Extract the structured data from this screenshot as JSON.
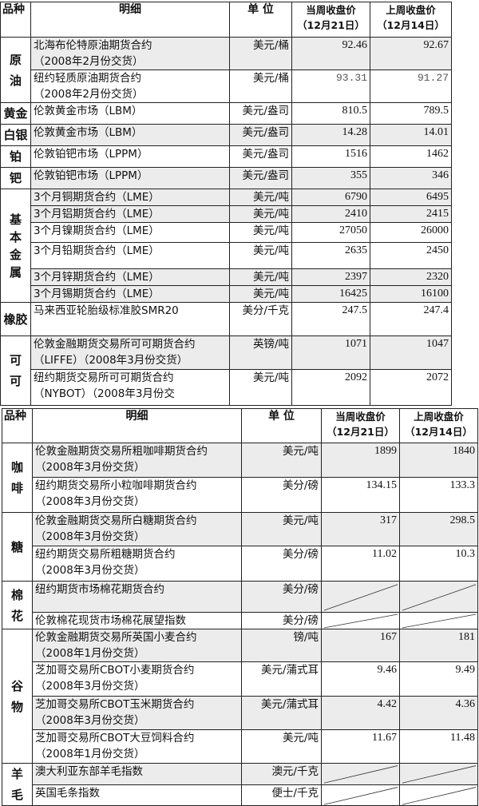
{
  "tables": [
    {
      "header": {
        "category": "品种",
        "detail": "明细",
        "unit": "单 位",
        "current": "当周收盘价",
        "current_date": "（12月21日）",
        "previous": "上周收盘价",
        "previous_date": "（12月14日）"
      },
      "groups": [
        {
          "category": "原油",
          "rows": [
            {
              "detail": [
                "北海布伦特原油期货合约",
                "（2008年2月份交货）"
              ],
              "unit": "美元/桶",
              "current": "92.46",
              "previous": "92.67",
              "shaded": true
            },
            {
              "detail": [
                "纽约轻质原油期货合约",
                "（2008年2月份交货）"
              ],
              "unit": "美元/桶",
              "current": "93.31",
              "previous": "91.27",
              "shaded": false,
              "mono": true
            }
          ]
        },
        {
          "category": "黄金",
          "rows": [
            {
              "detail": [
                "伦敦黄金市场（LBM）"
              ],
              "unit": "美元/盎司",
              "current": "810.5",
              "previous": "789.5",
              "shaded": false
            }
          ]
        },
        {
          "category": "白银",
          "rows": [
            {
              "detail": [
                "伦敦黄金市场（LBM）"
              ],
              "unit": "美元/盎司",
              "current": "14.28",
              "previous": "14.01",
              "shaded": true
            }
          ]
        },
        {
          "category": "铂",
          "rows": [
            {
              "detail": [
                "伦敦铂钯市场（LPPM）"
              ],
              "unit": "美元/盎司",
              "current": "1516",
              "previous": "1462",
              "shaded": false
            }
          ]
        },
        {
          "category": "钯",
          "rows": [
            {
              "detail": [
                "伦敦铂钯市场（LPPM）"
              ],
              "unit": "美元/盎司",
              "current": "355",
              "previous": "346",
              "shaded": true
            }
          ]
        },
        {
          "category": "基本金属",
          "rows": [
            {
              "detail": [
                "3个月铜期货合约（LME）"
              ],
              "unit": "美元/吨",
              "current": "6790",
              "previous": "6495",
              "shaded": true
            },
            {
              "detail": [
                "3个月铝期货合约（LME）"
              ],
              "unit": "美元/吨",
              "current": "2410",
              "previous": "2415",
              "shaded": true
            },
            {
              "detail": [
                "3个月镍期货合约（LME）"
              ],
              "unit": "美元/吨",
              "current": "27050",
              "previous": "26000",
              "shaded": false
            },
            {
              "detail": [
                "3个月铅期货合约（LME）"
              ],
              "unit": "美元/吨",
              "current": "2635",
              "previous": "2450",
              "shaded": false
            },
            {
              "detail": [
                "3个月锌期货合约（LME）"
              ],
              "unit": "美元/吨",
              "current": "2397",
              "previous": "2320",
              "shaded": true
            },
            {
              "detail": [
                "3个月锡期货合约（LME）"
              ],
              "unit": "美元/吨",
              "current": "16425",
              "previous": "16100",
              "shaded": true
            }
          ]
        },
        {
          "category": "橡胶",
          "rows": [
            {
              "detail": [
                "马来西亚轮胎级标准胶SMR20"
              ],
              "unit": "美分/千克",
              "current": "247.5",
              "previous": "247.4",
              "shaded": false
            }
          ]
        },
        {
          "category": "可可",
          "rows": [
            {
              "detail": [
                "伦敦金融期货交易所可可期货合约",
                "（LIFFE）（2008年3月份交货）"
              ],
              "unit": "英镑/吨",
              "current": "1071",
              "previous": "1047",
              "shaded": true
            },
            {
              "detail": [
                "纽约期货交易所可可期货合约",
                "（NYBOT）（2008年3月份交"
              ],
              "unit": "美元/吨",
              "current": "2092",
              "previous": "2072",
              "shaded": false
            }
          ]
        }
      ]
    },
    {
      "header": {
        "category": "品种",
        "detail": "明细",
        "unit": "单 位",
        "current": "当周收盘价",
        "current_date": "（12月21日）",
        "previous": "上周收盘价",
        "previous_date": "（12月14日）"
      },
      "groups": [
        {
          "category": "咖啡",
          "rows": [
            {
              "detail": [
                "伦敦金融期货交易所粗咖啡期货合约",
                "（2008年3月份交货）"
              ],
              "unit": "美元/吨",
              "current": "1899",
              "previous": "1840",
              "shaded": true
            },
            {
              "detail": [
                "纽约期货交易所小粒咖啡期货合约",
                "（2008年3月份交货）"
              ],
              "unit": "美分/磅",
              "current": "134.15",
              "previous": "133.3",
              "shaded": false
            }
          ]
        },
        {
          "category": "糖",
          "rows": [
            {
              "detail": [
                "伦敦金融期货交易所白糖期货合约",
                "（2008年3月份交货）"
              ],
              "unit": "美元/吨",
              "current": "317",
              "previous": "298.5",
              "shaded": true
            },
            {
              "detail": [
                "纽约期货交易所粗糖期货合约",
                "（2008年3月份交货）"
              ],
              "unit": "美分/磅",
              "current": "11.02",
              "previous": "10.3",
              "shaded": false
            }
          ]
        },
        {
          "category": "棉花",
          "rows": [
            {
              "detail": [
                "纽约期货市场棉花期货合约"
              ],
              "unit": "美分/磅",
              "current": null,
              "previous": null,
              "shaded": true
            },
            {
              "detail": [
                "伦敦棉花现货市场棉花展望指数"
              ],
              "unit": "美分/磅",
              "current": null,
              "previous": null,
              "shaded": false
            }
          ]
        },
        {
          "category": "谷物",
          "rows": [
            {
              "detail": [
                "伦敦金融期货交易所英国小麦合约",
                "（2008年1月份交货）"
              ],
              "unit": "镑/吨",
              "current": "167",
              "previous": "181",
              "shaded": true
            },
            {
              "detail": [
                "芝加哥交易所CBOT小麦期货合约",
                "（2008年3月份交货）"
              ],
              "unit": "美元/蒲式耳",
              "current": "9.46",
              "previous": "9.49",
              "shaded": false
            },
            {
              "detail": [
                "芝加哥交易所CBOT玉米期货合约",
                "（2008年3月份交货）"
              ],
              "unit": "美元/蒲式耳",
              "current": "4.42",
              "previous": "4.36",
              "shaded": true
            },
            {
              "detail": [
                "芝加哥交易所CBOT大豆饲料合约",
                "（2008年1月份交货）"
              ],
              "unit": "美元/吨",
              "current": "11.67",
              "previous": "11.48",
              "shaded": false
            }
          ]
        },
        {
          "category": "羊毛",
          "rows": [
            {
              "detail": [
                "澳大利亚东部羊毛指数"
              ],
              "unit": "澳元/千克",
              "current": null,
              "previous": null,
              "shaded": true
            },
            {
              "detail": [
                "英国毛条指数"
              ],
              "unit": "便士/千克",
              "current": null,
              "previous": null,
              "shaded": false
            }
          ]
        }
      ]
    }
  ]
}
